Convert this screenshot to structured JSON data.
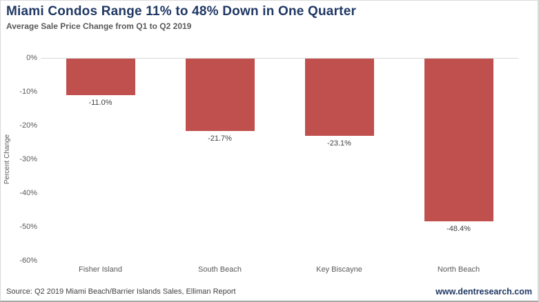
{
  "header": {
    "title": "Miami Condos Range 11% to 48% Down in One Quarter",
    "subtitle": "Average Sale Price Change from Q1 to Q2 2019"
  },
  "chart_data": {
    "type": "bar",
    "title": "Miami Condos Range 11% to 48% Down in One Quarter",
    "subtitle": "Average Sale Price Change from Q1 to Q2 2019",
    "categories": [
      "Fisher Island",
      "South Beach",
      "Key Biscayne",
      "North Beach"
    ],
    "values": [
      -11.0,
      -21.7,
      -23.1,
      -48.4
    ],
    "value_labels": [
      "-11.0%",
      "-21.7%",
      "-23.1%",
      "-48.4%"
    ],
    "xlabel": "",
    "ylabel": "Percent Change",
    "ylim": [
      -60,
      0
    ],
    "ytick_labels": [
      "0%",
      "-10%",
      "-20%",
      "-30%",
      "-40%",
      "-50%",
      "-60%"
    ],
    "ytick_values": [
      0,
      -10,
      -20,
      -30,
      -40,
      -50,
      -60
    ],
    "grid": "zero-line-only",
    "legend": "none",
    "bar_color": "#c0504d"
  },
  "footer": {
    "source": "Source: Q2 2019 Miami Beach/Barrier Islands Sales, Elliman Report",
    "website": "www.dentresearch.com"
  },
  "colors": {
    "title_text": "#1f3864",
    "subtitle_text": "#595959",
    "axis_text": "#595959",
    "data_label_text": "#404040",
    "bar_fill": "#c0504d",
    "zero_line": "#d9d9d9",
    "website_text": "#1f3864"
  }
}
